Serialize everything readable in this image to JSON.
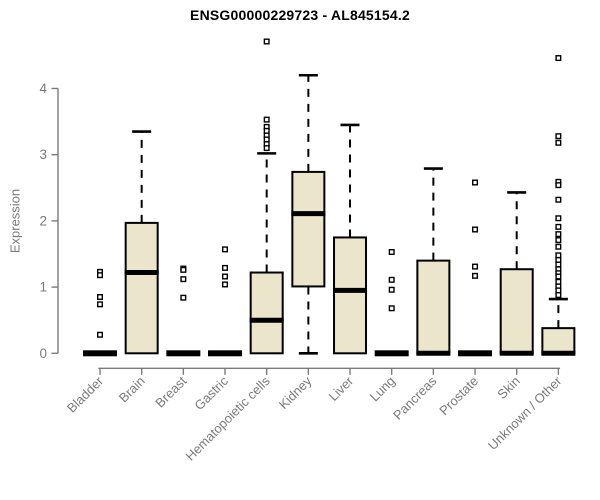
{
  "chart_data": {
    "type": "boxplot",
    "title": "ENSG00000229723 - AL845154.2",
    "ylabel": "Expression",
    "xlabel": "",
    "ylim": [
      0,
      4.75
    ],
    "yticks": [
      0,
      1,
      2,
      3,
      4
    ],
    "grid": false,
    "legend": "none",
    "categories": [
      "Bladder",
      "Brain",
      "Breast",
      "Gastric",
      "Hematopoietic cells",
      "Kidney",
      "Liver",
      "Lung",
      "Pancreas",
      "Prostate",
      "Skin",
      "Unknown / Other"
    ],
    "boxes": [
      {
        "category": "Bladder",
        "q1": 0,
        "median": 0,
        "q3": 0,
        "whisker_low": 0,
        "whisker_high": 0,
        "outliers": [
          1.23,
          1.18,
          0.85,
          0.74,
          0.28
        ]
      },
      {
        "category": "Brain",
        "q1": 0,
        "median": 1.22,
        "q3": 1.97,
        "whisker_low": 0,
        "whisker_high": 3.35,
        "outliers": []
      },
      {
        "category": "Breast",
        "q1": 0,
        "median": 0,
        "q3": 0,
        "whisker_low": 0,
        "whisker_high": 0,
        "outliers": [
          1.28,
          1.26,
          1.12,
          0.84
        ]
      },
      {
        "category": "Gastric",
        "q1": 0,
        "median": 0,
        "q3": 0,
        "whisker_low": 0,
        "whisker_high": 0,
        "outliers": [
          1.57,
          1.29,
          1.16,
          1.04
        ]
      },
      {
        "category": "Hematopoietic cells",
        "q1": 0,
        "median": 0.5,
        "q3": 1.22,
        "whisker_low": 0,
        "whisker_high": 3.02,
        "outliers": [
          4.71,
          3.53,
          3.42,
          3.36,
          3.29,
          3.23,
          3.16,
          3.1
        ]
      },
      {
        "category": "Kidney",
        "q1": 1.01,
        "median": 2.11,
        "q3": 2.74,
        "whisker_low": 0,
        "whisker_high": 4.2,
        "outliers": []
      },
      {
        "category": "Liver",
        "q1": 0,
        "median": 0.95,
        "q3": 1.75,
        "whisker_low": 0,
        "whisker_high": 3.45,
        "outliers": []
      },
      {
        "category": "Lung",
        "q1": 0,
        "median": 0,
        "q3": 0,
        "whisker_low": 0,
        "whisker_high": 0,
        "outliers": [
          1.53,
          1.11,
          0.96,
          0.68
        ]
      },
      {
        "category": "Pancreas",
        "q1": 0,
        "median": 0,
        "q3": 1.4,
        "whisker_low": 0,
        "whisker_high": 2.79,
        "outliers": []
      },
      {
        "category": "Prostate",
        "q1": 0,
        "median": 0,
        "q3": 0,
        "whisker_low": 0,
        "whisker_high": 0,
        "outliers": [
          2.58,
          1.87,
          1.31,
          1.17
        ]
      },
      {
        "category": "Skin",
        "q1": 0,
        "median": 0,
        "q3": 1.27,
        "whisker_low": 0,
        "whisker_high": 2.43,
        "outliers": []
      },
      {
        "category": "Unknown / Other",
        "q1": 0,
        "median": 0,
        "q3": 0.38,
        "whisker_low": 0,
        "whisker_high": 0.82,
        "outliers": [
          4.46,
          3.28,
          3.18,
          2.59,
          2.54,
          2.32,
          2.04,
          1.91,
          1.8,
          1.71,
          1.61,
          1.48,
          1.41,
          1.34,
          1.27,
          1.21,
          1.16,
          1.08,
          1.01,
          0.95,
          0.88
        ]
      }
    ],
    "colors": {
      "background": "#ffffff",
      "box_fill": "#ebe5cb",
      "box_border": "#000000",
      "median": "#000000",
      "whisker": "#000000",
      "outlier": "#000000",
      "axis": "#7a7a7a",
      "tick_label": "#7a7a7a",
      "title": "#000000"
    }
  }
}
